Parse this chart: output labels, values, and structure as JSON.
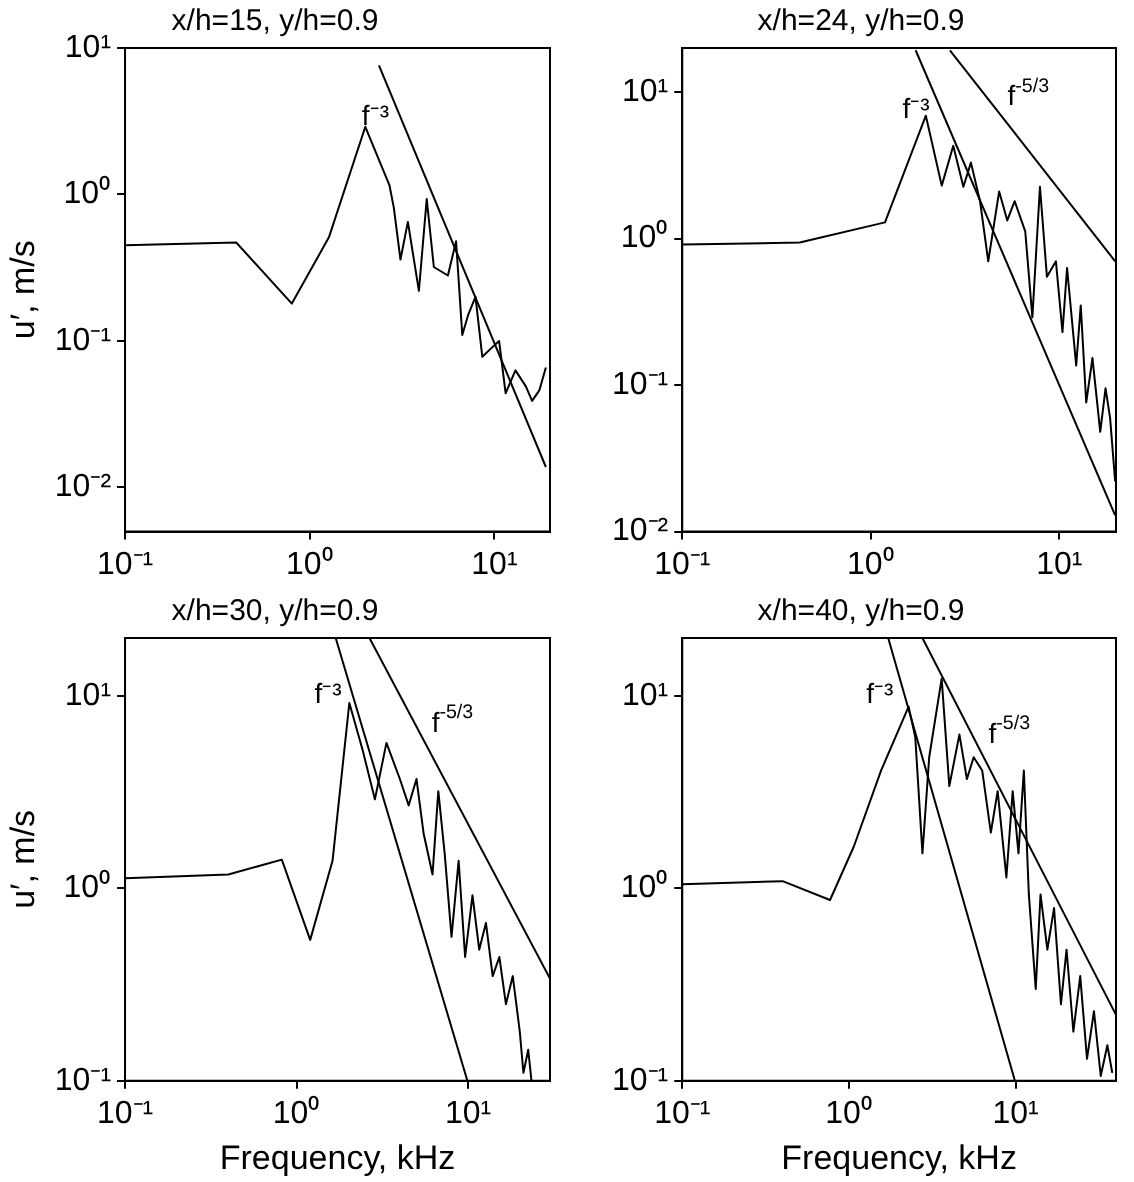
{
  "chart_data": [
    {
      "type": "line",
      "title": "x/h=15, y/h=0.9",
      "ylabel": "u′, m/s",
      "log": "xy",
      "marker": "none",
      "xlim": [
        0.1,
        20
      ],
      "ylim": [
        0.005,
        10
      ],
      "xticks": [
        {
          "value": 0.1,
          "label": "10⁻¹"
        },
        {
          "value": 1,
          "label": "10⁰"
        },
        {
          "value": 10,
          "label": "10¹"
        }
      ],
      "yticks": [
        {
          "value": 0.01,
          "label": "10⁻²"
        },
        {
          "value": 0.1,
          "label": "10⁻¹"
        },
        {
          "value": 1,
          "label": "10⁰"
        },
        {
          "value": 10,
          "label": "10¹"
        }
      ],
      "series": [
        {
          "color": "#000000",
          "x": [
            0.1,
            0.4,
            0.8,
            1.27,
            2.0,
            2.7,
            2.85,
            3.1,
            3.4,
            3.9,
            4.3,
            4.7,
            5.6,
            6.2,
            6.7,
            7.2,
            7.9,
            8.6,
            9.5,
            10.6,
            11.5,
            13,
            14.8,
            16,
            17.5,
            19
          ],
          "values": [
            0.45,
            0.47,
            0.18,
            0.51,
            2.9,
            1.16,
            0.82,
            0.36,
            0.65,
            0.22,
            0.93,
            0.32,
            0.28,
            0.48,
            0.11,
            0.15,
            0.2,
            0.078,
            0.088,
            0.1,
            0.044,
            0.063,
            0.049,
            0.039,
            0.046,
            0.066
          ]
        },
        {
          "name": "f⁻³",
          "color": "#000000",
          "x": [
            2.37,
            19
          ],
          "values": [
            7.6,
            0.0138
          ]
        }
      ]
    },
    {
      "type": "line",
      "title": "x/h=24, y/h=0.9",
      "log": "xy",
      "marker": "none",
      "xlim": [
        0.1,
        20
      ],
      "ylim": [
        0.01,
        20
      ],
      "xticks": [
        {
          "value": 0.1,
          "label": "10⁻¹"
        },
        {
          "value": 1,
          "label": "10⁰"
        },
        {
          "value": 10,
          "label": "10¹"
        }
      ],
      "yticks": [
        {
          "value": 0.01,
          "label": "10⁻²"
        },
        {
          "value": 0.1,
          "label": "10⁻¹"
        },
        {
          "value": 1,
          "label": "10⁰"
        },
        {
          "value": 10,
          "label": "10¹"
        }
      ],
      "series": [
        {
          "color": "#000000",
          "x": [
            0.1,
            0.42,
            1.19,
            1.96,
            2.38,
            2.74,
            3.1,
            3.4,
            3.8,
            4.2,
            4.8,
            5.3,
            5.8,
            6.6,
            7.2,
            7.9,
            8.6,
            9.6,
            10.4,
            11,
            12.3,
            13,
            13.9,
            15,
            16.5,
            17.6,
            18.6,
            19.8
          ],
          "values": [
            0.91,
            0.94,
            1.29,
            6.9,
            2.3,
            4.3,
            2.26,
            3.3,
            1.8,
            0.7,
            2.1,
            1.33,
            1.8,
            1.12,
            0.29,
            2.26,
            0.55,
            0.7,
            0.23,
            0.63,
            0.136,
            0.35,
            0.076,
            0.153,
            0.048,
            0.095,
            0.06,
            0.022
          ]
        },
        {
          "name": "f⁻³",
          "color": "#000000",
          "x": [
            1.73,
            19.8
          ],
          "values": [
            19.3,
            0.0129
          ]
        },
        {
          "name": "f$^{-5/3}$",
          "color": "#000000",
          "x": [
            2.63,
            19.8
          ],
          "values": [
            19.3,
            0.7
          ]
        }
      ]
    },
    {
      "type": "line",
      "title": "x/h=30, y/h=0.9",
      "xlabel": "Frequency, kHz",
      "ylabel": "u′, m/s",
      "log": "xy",
      "marker": "none",
      "xlim": [
        0.1,
        30
      ],
      "ylim": [
        0.1,
        20
      ],
      "xticks": [
        {
          "value": 0.1,
          "label": "10⁻¹"
        },
        {
          "value": 1,
          "label": "10⁰"
        },
        {
          "value": 10,
          "label": "10¹"
        }
      ],
      "yticks": [
        {
          "value": 0.1,
          "label": "10⁻¹"
        },
        {
          "value": 1,
          "label": "10⁰"
        },
        {
          "value": 10,
          "label": "10¹"
        }
      ],
      "series": [
        {
          "color": "#000000",
          "x": [
            0.1,
            0.4,
            0.82,
            1.2,
            1.62,
            2.03,
            2.43,
            2.86,
            3.34,
            4.0,
            4.5,
            5.0,
            5.5,
            6.2,
            6.7,
            7.3,
            8.0,
            8.8,
            9.6,
            10.6,
            11.6,
            12.7,
            13.9,
            15.2,
            16.6,
            18.2,
            20,
            21,
            22.4,
            23.4
          ],
          "values": [
            1.13,
            1.18,
            1.41,
            0.54,
            1.39,
            9.2,
            5.2,
            2.9,
            5.7,
            3.7,
            2.7,
            3.7,
            1.93,
            1.18,
            3.2,
            1.51,
            0.56,
            1.39,
            0.44,
            0.92,
            0.48,
            0.66,
            0.35,
            0.44,
            0.25,
            0.35,
            0.18,
            0.11,
            0.145,
            0.1
          ]
        },
        {
          "name": "f⁻³",
          "color": "#000000",
          "x": [
            1.69,
            9.9
          ],
          "values": [
            20,
            0.1
          ]
        },
        {
          "name": "f$^{-5/3}$",
          "color": "#000000",
          "x": [
            2.66,
            30
          ],
          "values": [
            20,
            0.34
          ]
        }
      ]
    },
    {
      "type": "line",
      "title": "x/h=40, y/h=0.9",
      "xlabel": "Frequency, kHz",
      "log": "xy",
      "marker": "none",
      "xlim": [
        0.1,
        40
      ],
      "ylim": [
        0.1,
        20
      ],
      "xticks": [
        {
          "value": 0.1,
          "label": "10⁻¹"
        },
        {
          "value": 1,
          "label": "10⁰"
        },
        {
          "value": 10,
          "label": "10¹"
        }
      ],
      "yticks": [
        {
          "value": 0.1,
          "label": "10⁻¹"
        },
        {
          "value": 1,
          "label": "10⁰"
        },
        {
          "value": 10,
          "label": "10¹"
        }
      ],
      "series": [
        {
          "color": "#000000",
          "x": [
            0.1,
            0.4,
            0.77,
            1.07,
            1.56,
            2.28,
            2.5,
            2.76,
            3.03,
            3.6,
            4.0,
            4.6,
            5.1,
            5.6,
            6.3,
            7.1,
            7.8,
            8.8,
            9.6,
            10.4,
            11.2,
            12,
            13.2,
            14.1,
            15.5,
            17,
            18.7,
            20.2,
            22.2,
            24.4,
            26.8,
            29.5,
            32.4,
            35.5,
            38
          ],
          "values": [
            1.05,
            1.09,
            0.87,
            1.65,
            4.1,
            8.8,
            6.1,
            1.52,
            4.8,
            12.3,
            3.4,
            6.3,
            3.7,
            4.8,
            4.1,
            1.95,
            3.2,
            1.14,
            3.2,
            1.52,
            4.1,
            0.93,
            0.3,
            0.93,
            0.48,
            0.79,
            0.25,
            0.48,
            0.18,
            0.35,
            0.13,
            0.23,
            0.106,
            0.153,
            0.11
          ]
        },
        {
          "name": "f⁻³",
          "color": "#000000",
          "x": [
            1.72,
            9.9
          ],
          "values": [
            20,
            0.1
          ]
        },
        {
          "name": "f$^{-5/3}$",
          "color": "#000000",
          "x": [
            2.76,
            40
          ],
          "values": [
            20,
            0.22
          ]
        }
      ]
    }
  ]
}
